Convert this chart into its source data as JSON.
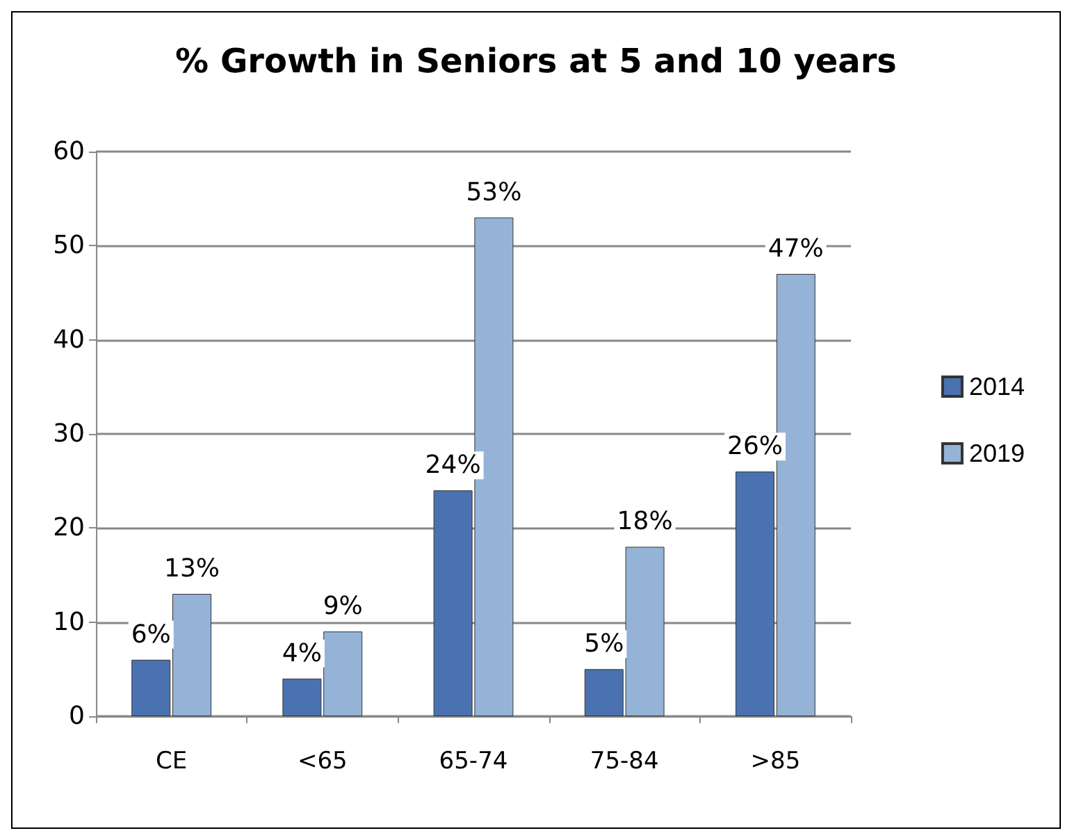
{
  "chart_data": {
    "type": "bar",
    "title": "% Growth in Seniors at 5 and 10 years",
    "categories": [
      "CE",
      "<65",
      "65-74",
      "75-84",
      ">85"
    ],
    "series": [
      {
        "name": "2014",
        "color": "#4a72b0",
        "values": [
          6,
          4,
          24,
          5,
          26
        ],
        "value_labels": [
          "6%",
          "4%",
          "24%",
          "5%",
          "26%"
        ]
      },
      {
        "name": "2019",
        "color": "#95b3d7",
        "values": [
          13,
          9,
          53,
          18,
          47
        ],
        "value_labels": [
          "13%",
          "9%",
          "53%",
          "18%",
          "47%"
        ]
      }
    ],
    "ylim": [
      0,
      60
    ],
    "yticks": [
      0,
      10,
      20,
      30,
      40,
      50,
      60
    ],
    "grid": "y",
    "legend": "right"
  }
}
